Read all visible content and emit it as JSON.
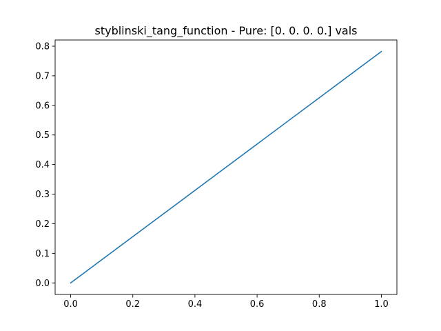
{
  "chart_data": {
    "type": "line",
    "title": "styblinski_tang_function - Pure: [0. 0. 0. 0.] vals",
    "xlabel": "",
    "ylabel": "",
    "xlim": [
      -0.05,
      1.05
    ],
    "ylim": [
      -0.039,
      0.821
    ],
    "x_ticks": [
      0.0,
      0.2,
      0.4,
      0.6,
      0.8,
      1.0
    ],
    "x_tick_labels": [
      "0.0",
      "0.2",
      "0.4",
      "0.6",
      "0.8",
      "1.0"
    ],
    "y_ticks": [
      0.0,
      0.1,
      0.2,
      0.3,
      0.4,
      0.5,
      0.6,
      0.7,
      0.8
    ],
    "y_tick_labels": [
      "0.0",
      "0.1",
      "0.2",
      "0.3",
      "0.4",
      "0.5",
      "0.6",
      "0.7",
      "0.8"
    ],
    "grid": false,
    "series": [
      {
        "x": [
          0.0,
          1.0
        ],
        "y": [
          0.0,
          0.782
        ],
        "color": "#1f77b4"
      }
    ]
  }
}
